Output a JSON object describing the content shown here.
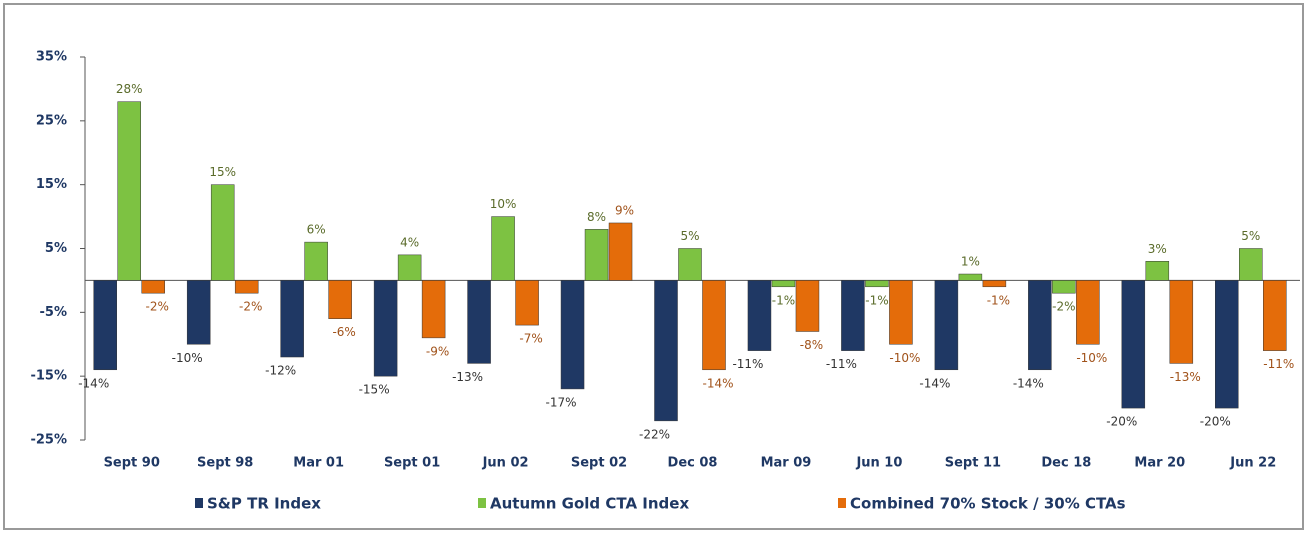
{
  "chart_data": {
    "type": "bar",
    "categories": [
      "Sept 90",
      "Sept 98",
      "Mar 01",
      "Sept 01",
      "Jun 02",
      "Sept 02",
      "Dec 08",
      "Mar 09",
      "Jun 10",
      "Sept 11",
      "Dec 18",
      "Mar 20",
      "Jun 22"
    ],
    "series": [
      {
        "name": "S&P TR Index",
        "color": "#1f3864",
        "values": [
          -14,
          -10,
          -12,
          -15,
          -13,
          -17,
          -22,
          -11,
          -11,
          -14,
          -14,
          -20,
          -20
        ],
        "value_labels": [
          "-14%",
          "-10%",
          "-12%",
          "-15%",
          "-13%",
          "-17%",
          "-22%",
          "-11%",
          "-11%",
          "-14%",
          "-14%",
          "-20%",
          "-20%"
        ]
      },
      {
        "name": "Autumn Gold CTA Index",
        "color": "#7dc242",
        "values": [
          28,
          15,
          6,
          4,
          10,
          8,
          5,
          -1,
          -1,
          1,
          -2,
          3,
          5
        ],
        "value_labels": [
          "28%",
          "15%",
          "6%",
          "4%",
          "10%",
          "8%",
          "5%",
          "-1%",
          "-1%",
          "1%",
          "-2%",
          "3%",
          "5%"
        ]
      },
      {
        "name": "Combined 70% Stock / 30% CTAs",
        "color": "#e46c0a",
        "values": [
          -2,
          -2,
          -6,
          -9,
          -7,
          9,
          -14,
          -8,
          -10,
          -1,
          -10,
          -13,
          -11
        ],
        "value_labels": [
          "-2%",
          "-2%",
          "-6%",
          "-9%",
          "-7%",
          "9%",
          "-14%",
          "-8%",
          "-10%",
          "-1%",
          "-10%",
          "-13%",
          "-11%"
        ]
      }
    ],
    "ylim": [
      -25,
      35
    ],
    "yticks": [
      {
        "value": -25,
        "label": "-25%"
      },
      {
        "value": -15,
        "label": "-15%"
      },
      {
        "value": -5,
        "label": "-5%"
      },
      {
        "value": 5,
        "label": "5%"
      },
      {
        "value": 15,
        "label": "15%"
      },
      {
        "value": 25,
        "label": "25%"
      },
      {
        "value": 35,
        "label": "35%"
      }
    ],
    "legend": "bottom",
    "grid": false
  }
}
